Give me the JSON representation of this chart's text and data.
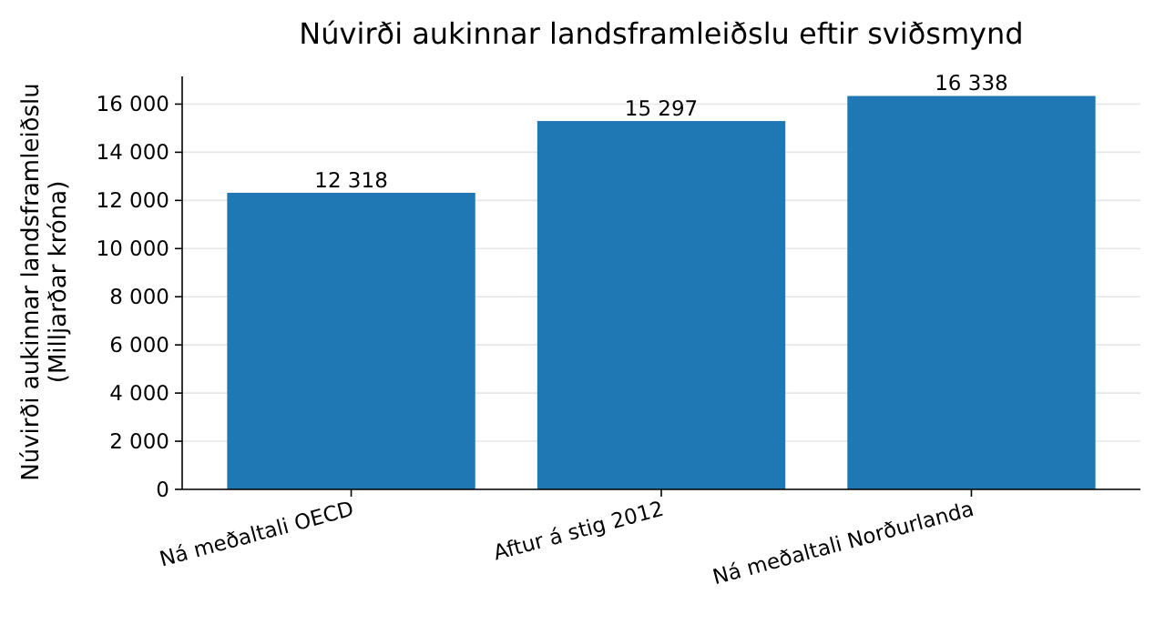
{
  "chart_data": {
    "type": "bar",
    "title": "Núvirði aukinnar landsframleiðslu eftir sviðsmynd",
    "ylabel": "Núvirði aukinnar landsframleiðslu\n(Milljarðar króna)",
    "categories": [
      "Ná meðaltali OECD",
      "Aftur á stig 2012",
      "Ná meðaltali Norðurlanda"
    ],
    "values": [
      12318,
      15297,
      16338
    ],
    "color": "#1f77b4",
    "value_labels": [
      "12 318",
      "15 297",
      "16 338"
    ],
    "ylim": [
      0,
      17150
    ],
    "yticks": [
      0,
      {
        "value": 2000,
        "label": "2 000"
      },
      {
        "value": 4000,
        "label": "4 000"
      },
      {
        "value": 6000,
        "label": "6 000"
      },
      {
        "value": 8000,
        "label": "8 000"
      },
      {
        "value": 10000,
        "label": "10 000"
      },
      {
        "value": 12000,
        "label": "12 000"
      },
      {
        "value": 14000,
        "label": "14 000"
      },
      {
        "value": 16000,
        "label": "16 000"
      }
    ],
    "grid": "y"
  }
}
